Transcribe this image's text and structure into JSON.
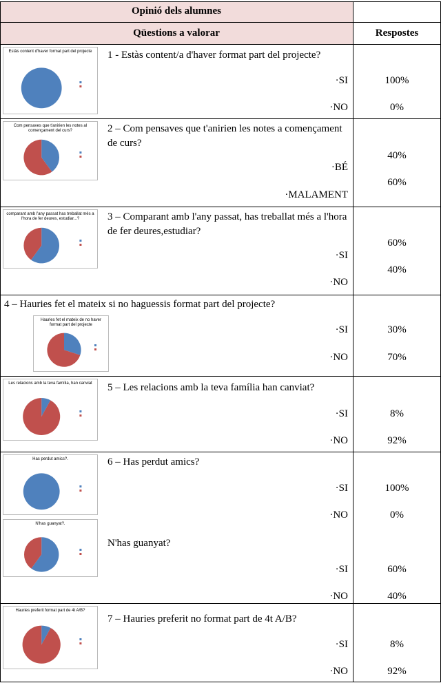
{
  "header": {
    "title": "Opinió dels alumnes",
    "questions_heading": "Qüestions a valorar",
    "answers_heading": "Respostes"
  },
  "questions": [
    {
      "parts": [
        {
          "chart_title": "Estàs content d'haver format part del projecte",
          "text": "1 - Estàs content/a d'haver format part del projecte?",
          "options": [
            {
              "option": "·SI",
              "value": 100,
              "label": "100%"
            },
            {
              "option": "·NO",
              "value": 0,
              "label": "0%"
            }
          ]
        }
      ]
    },
    {
      "parts": [
        {
          "chart_title": "Com pensaves que t'anirien les notes al començament del curs?",
          "text": "2 – Com pensaves que t'anirien les notes a començament de curs?",
          "options": [
            {
              "option": "·BÉ",
              "value": 40,
              "label": "40%"
            },
            {
              "option": "·MALAMENT",
              "value": 60,
              "label": "60%"
            }
          ]
        }
      ]
    },
    {
      "parts": [
        {
          "chart_title": "comparant amb l'any passat has treballat més a l'hora de fer deures, estudiar...?",
          "text": "3 – Comparant amb l'any passat, has treballat més a l'hora de fer deures,estudiar?",
          "options": [
            {
              "option": "·SI",
              "value": 60,
              "label": "60%"
            },
            {
              "option": "·NO",
              "value": 40,
              "label": "40%"
            }
          ]
        }
      ]
    },
    {
      "parts": [
        {
          "chart_title": "Hauries fet el mateix de no haver format part del projecte",
          "text": "4 – Hauries fet el mateix si no haguessis format part del projecte?",
          "options": [
            {
              "option": "·SI",
              "value": 30,
              "label": "30%"
            },
            {
              "option": "·NO",
              "value": 70,
              "label": "70%"
            }
          ]
        }
      ]
    },
    {
      "parts": [
        {
          "chart_title": "Les relacions amb la teva família, han canviat",
          "text": "5 – Les relacions amb la teva família han canviat?",
          "options": [
            {
              "option": "·SI",
              "value": 8,
              "label": "8%"
            },
            {
              "option": "·NO",
              "value": 92,
              "label": "92%"
            }
          ]
        }
      ]
    },
    {
      "parts": [
        {
          "chart_title": "Has perdut amics?.",
          "text": "6 – Has perdut amics?",
          "options": [
            {
              "option": "·SI",
              "value": 100,
              "label": "100%"
            },
            {
              "option": "·NO",
              "value": 0,
              "label": "0%"
            }
          ]
        },
        {
          "chart_title": "N'has guanyat?.",
          "text": "N'has guanyat?",
          "options": [
            {
              "option": "·SI",
              "value": 60,
              "label": "60%"
            },
            {
              "option": "·NO",
              "value": 40,
              "label": "40%"
            }
          ]
        }
      ]
    },
    {
      "parts": [
        {
          "chart_title": "Hauries preferit format part de 4t A/B?",
          "text": "7 – Hauries preferit no format part de 4t A/B?",
          "options": [
            {
              "option": "·SI",
              "value": 8,
              "label": "8%"
            },
            {
              "option": "·NO",
              "value": 92,
              "label": "92%"
            }
          ]
        }
      ]
    }
  ],
  "colors": [
    "#4f81bd",
    "#c0504d"
  ]
}
